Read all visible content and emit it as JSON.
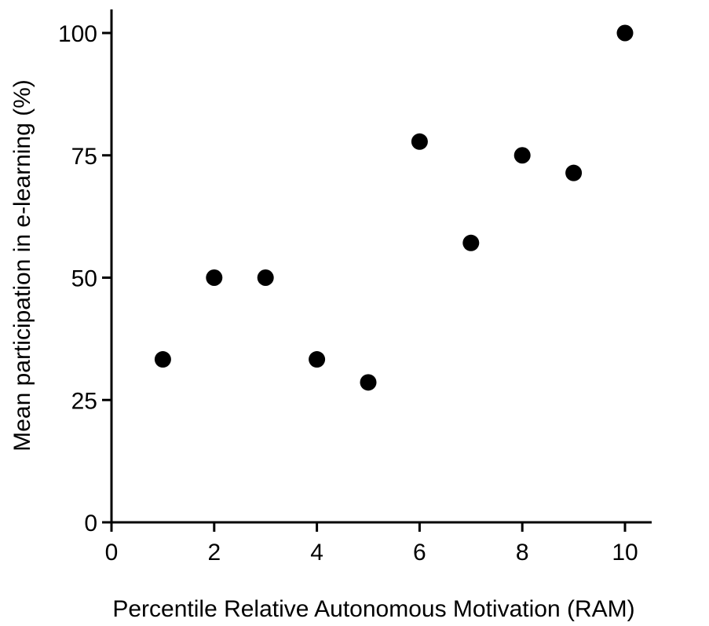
{
  "chart_data": {
    "type": "scatter",
    "title": "",
    "xlabel": "Percentile Relative Autonomous Motivation (RAM)",
    "ylabel": "Mean participation in e-learning (%)",
    "xlim": [
      0,
      10.5
    ],
    "ylim": [
      0,
      100
    ],
    "x_ticks": [
      0,
      2,
      4,
      6,
      8,
      10
    ],
    "y_ticks": [
      0,
      25,
      50,
      75,
      100
    ],
    "x_tick_labels": [
      "0",
      "2",
      "4",
      "6",
      "8",
      "10"
    ],
    "y_tick_labels": [
      "0",
      "25",
      "50",
      "75",
      "100"
    ],
    "grid": false,
    "legend": "none",
    "marker_color": "#000000",
    "x": [
      1,
      2,
      3,
      4,
      5,
      6,
      7,
      8,
      9,
      10
    ],
    "y": [
      33.3,
      50,
      50,
      33.3,
      28.6,
      77.8,
      57.1,
      75,
      71.4,
      100
    ]
  }
}
